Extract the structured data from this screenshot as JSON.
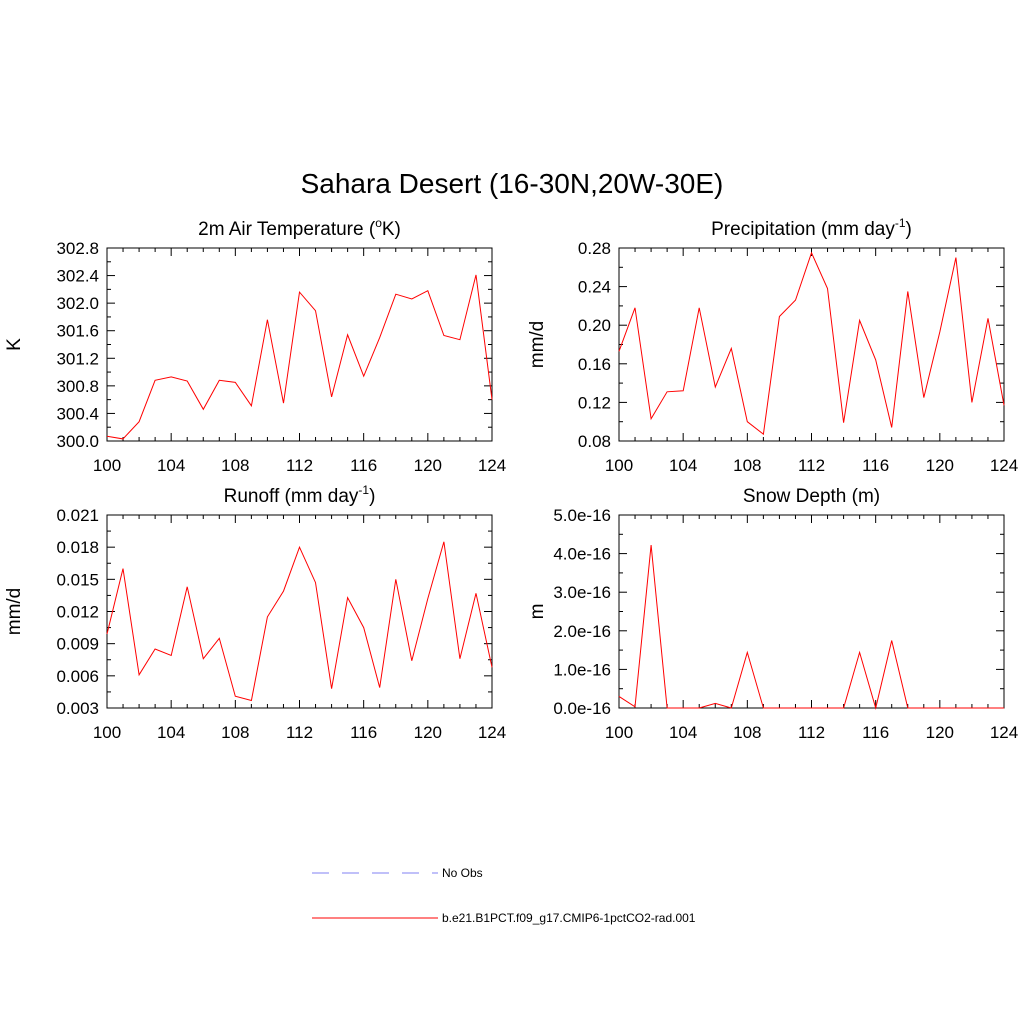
{
  "figure": {
    "title": "Sahara Desert (16-30N,20W-30E)"
  },
  "legend": [
    {
      "label": "No Obs",
      "color": "#9b9bf5",
      "style": "dashed"
    },
    {
      "label": "b.e21.B1PCT.f09_g17.CMIP6-1pctCO2-rad.001",
      "color": "#ff0000",
      "style": "solid"
    }
  ],
  "chart_data": [
    {
      "type": "line",
      "title": "2m Air Temperature (",
      "title_sup": "o",
      "title_after": "K)",
      "xlabel": "",
      "ylabel": "K",
      "xlim": [
        100,
        124
      ],
      "ylim": [
        300.0,
        302.8
      ],
      "xticks": [
        "100",
        "104",
        "108",
        "112",
        "116",
        "120",
        "124"
      ],
      "yticks": [
        "300.0",
        "300.4",
        "300.8",
        "301.2",
        "301.6",
        "302.0",
        "302.4",
        "302.8"
      ],
      "grid": false,
      "x": [
        100,
        101,
        102,
        103,
        104,
        105,
        106,
        107,
        108,
        109,
        110,
        111,
        112,
        113,
        114,
        115,
        116,
        117,
        118,
        119,
        120,
        121,
        122,
        123,
        124
      ],
      "series": [
        {
          "name": "b.e21.B1PCT.f09_g17.CMIP6-1pctCO2-rad.001",
          "color": "#ff0000",
          "values": [
            300.07,
            300.03,
            300.28,
            300.88,
            300.93,
            300.87,
            300.46,
            300.88,
            300.85,
            300.51,
            301.76,
            300.55,
            302.16,
            301.89,
            300.64,
            301.54,
            300.94,
            301.5,
            302.13,
            302.06,
            302.18,
            301.53,
            301.47,
            302.41,
            300.6
          ]
        }
      ]
    },
    {
      "type": "line",
      "title": "Precipitation (mm day",
      "title_sup": "-1",
      "title_after": ")",
      "xlabel": "",
      "ylabel": "mm/d",
      "xlim": [
        100,
        124
      ],
      "ylim": [
        0.08,
        0.28
      ],
      "xticks": [
        "100",
        "104",
        "108",
        "112",
        "116",
        "120",
        "124"
      ],
      "yticks": [
        "0.08",
        "0.12",
        "0.16",
        "0.20",
        "0.24",
        "0.28"
      ],
      "grid": false,
      "x": [
        100,
        101,
        102,
        103,
        104,
        105,
        106,
        107,
        108,
        109,
        110,
        111,
        112,
        113,
        114,
        115,
        116,
        117,
        118,
        119,
        120,
        121,
        122,
        123,
        124
      ],
      "series": [
        {
          "name": "b.e21.B1PCT.f09_g17.CMIP6-1pctCO2-rad.001",
          "color": "#ff0000",
          "values": [
            0.173,
            0.218,
            0.103,
            0.131,
            0.132,
            0.218,
            0.136,
            0.176,
            0.1,
            0.087,
            0.209,
            0.226,
            0.275,
            0.238,
            0.099,
            0.205,
            0.164,
            0.094,
            0.235,
            0.125,
            0.193,
            0.27,
            0.12,
            0.207,
            0.117
          ]
        }
      ]
    },
    {
      "type": "line",
      "title": "Runoff (mm day",
      "title_sup": "-1",
      "title_after": ")",
      "xlabel": "",
      "ylabel": "mm/d",
      "xlim": [
        100,
        124
      ],
      "ylim": [
        0.003,
        0.021
      ],
      "xticks": [
        "100",
        "104",
        "108",
        "112",
        "116",
        "120",
        "124"
      ],
      "yticks": [
        "0.003",
        "0.006",
        "0.009",
        "0.012",
        "0.015",
        "0.018",
        "0.021"
      ],
      "grid": false,
      "x": [
        100,
        101,
        102,
        103,
        104,
        105,
        106,
        107,
        108,
        109,
        110,
        111,
        112,
        113,
        114,
        115,
        116,
        117,
        118,
        119,
        120,
        121,
        122,
        123,
        124
      ],
      "series": [
        {
          "name": "b.e21.B1PCT.f09_g17.CMIP6-1pctCO2-rad.001",
          "color": "#ff0000",
          "values": [
            0.0099,
            0.016,
            0.0061,
            0.0085,
            0.0079,
            0.0143,
            0.0076,
            0.0095,
            0.0041,
            0.0037,
            0.0115,
            0.0139,
            0.018,
            0.0147,
            0.0048,
            0.0133,
            0.0105,
            0.0049,
            0.015,
            0.0074,
            0.0132,
            0.0185,
            0.0076,
            0.0137,
            0.0068
          ]
        }
      ]
    },
    {
      "type": "line",
      "title": "Snow Depth (m)",
      "title_sup": "",
      "title_after": "",
      "xlabel": "",
      "ylabel": "m",
      "xlim": [
        100,
        124
      ],
      "ylim": [
        0,
        5e-16
      ],
      "xticks": [
        "100",
        "104",
        "108",
        "112",
        "116",
        "120",
        "124"
      ],
      "yticks": [
        "0.0e-16",
        "1.0e-16",
        "2.0e-16",
        "3.0e-16",
        "4.0e-16",
        "5.0e-16"
      ],
      "grid": false,
      "x": [
        100,
        101,
        102,
        103,
        104,
        105,
        106,
        107,
        108,
        109,
        110,
        111,
        112,
        113,
        114,
        115,
        116,
        117,
        118,
        119,
        120,
        121,
        122,
        123,
        124
      ],
      "series": [
        {
          "name": "b.e21.B1PCT.f09_g17.CMIP6-1pctCO2-rad.001",
          "color": "#ff0000",
          "values": [
            3e-17,
            3e-18,
            4.22e-16,
            0,
            0,
            0,
            1.2e-17,
            0,
            1.44e-16,
            0,
            0,
            0,
            0,
            0,
            0,
            1.44e-16,
            0,
            1.75e-16,
            0,
            0,
            0,
            0,
            0,
            0,
            0
          ]
        }
      ]
    }
  ]
}
